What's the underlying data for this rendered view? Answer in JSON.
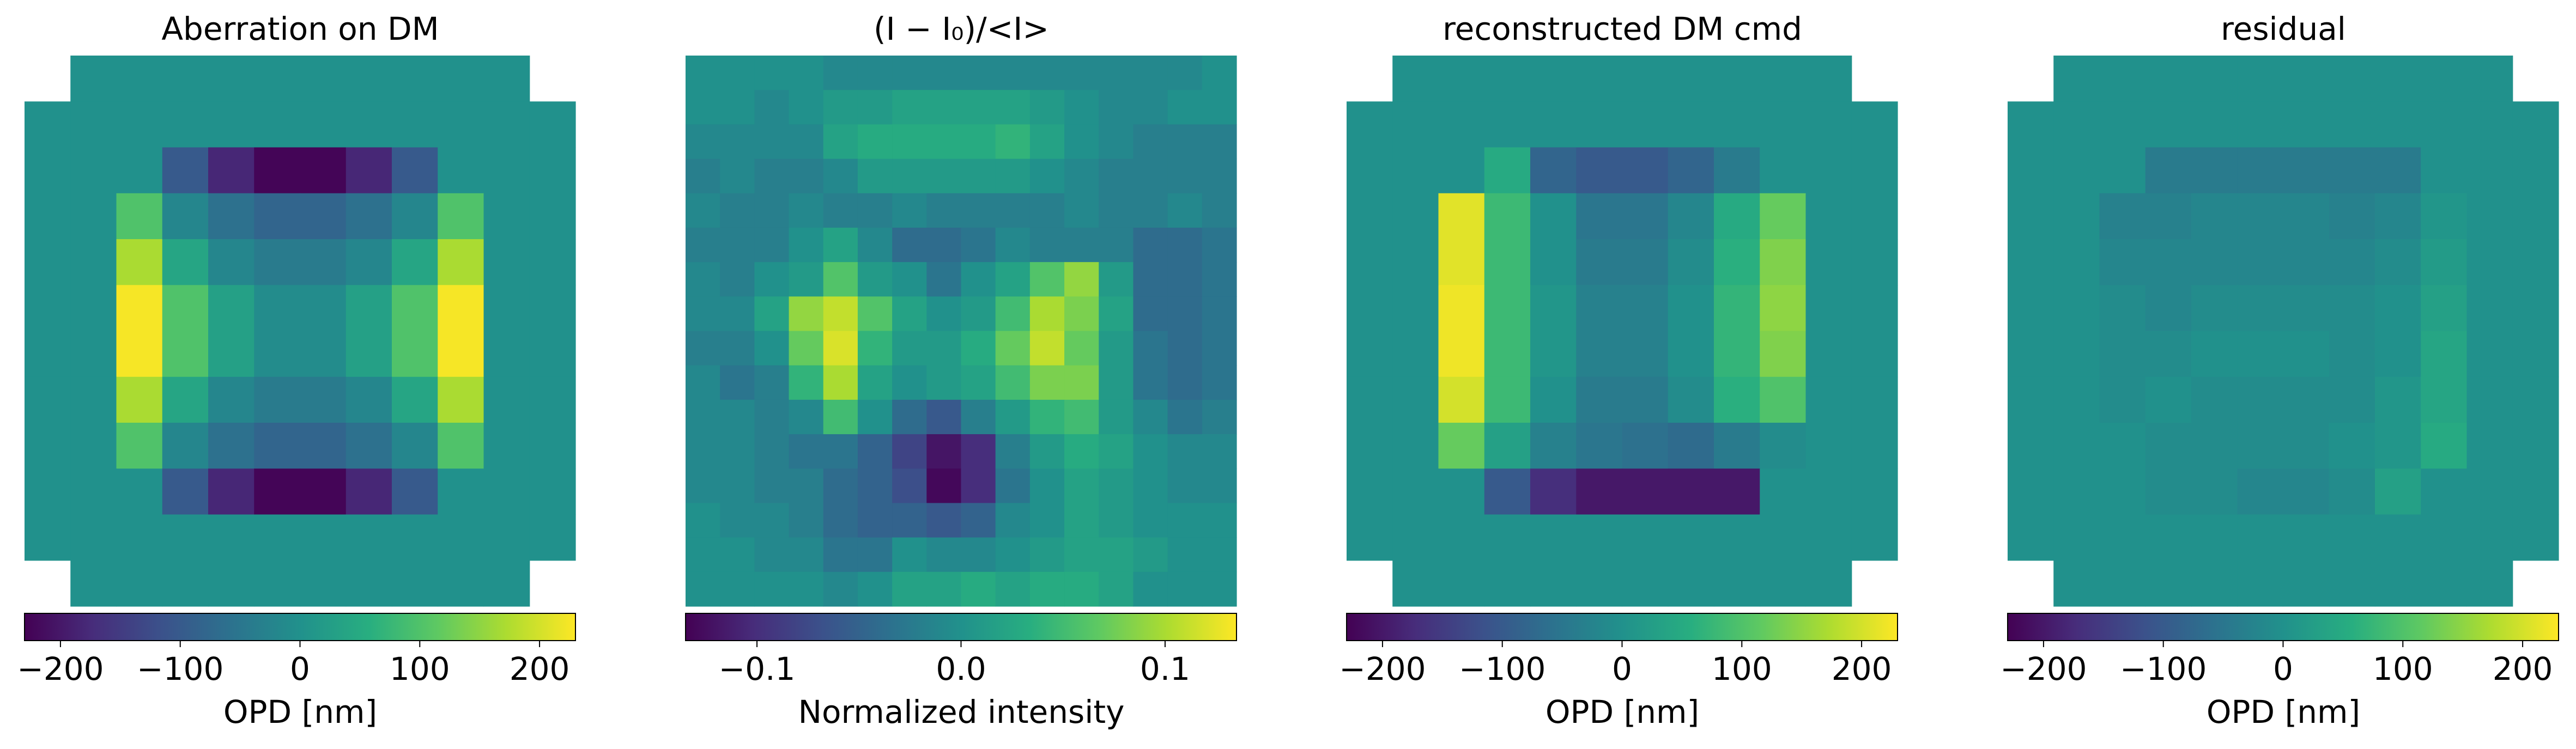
{
  "figure": {
    "panels_count": 4
  },
  "chart_data": [
    {
      "type": "heatmap",
      "title": "Aberration on DM",
      "colormap": "viridis",
      "grid": false,
      "colorbar": {
        "label": "OPD [nm]",
        "vmin": -230,
        "vmax": 230,
        "ticks": [
          -200,
          -100,
          0,
          100,
          200
        ],
        "tick_labels": [
          "−200",
          "−100",
          "0",
          "100",
          "200"
        ]
      },
      "grid_size": 12,
      "grid_data": [
        [
          null,
          0,
          0,
          0,
          0,
          0,
          0,
          0,
          0,
          0,
          0,
          null
        ],
        [
          0,
          0,
          0,
          0,
          0,
          0,
          0,
          0,
          0,
          0,
          0,
          0
        ],
        [
          0,
          0,
          0,
          -100,
          -180,
          -225,
          -225,
          -180,
          -100,
          0,
          0,
          0
        ],
        [
          0,
          0,
          100,
          -20,
          -60,
          -80,
          -80,
          -60,
          -20,
          100,
          0,
          0
        ],
        [
          0,
          0,
          170,
          40,
          -20,
          -40,
          -40,
          -20,
          40,
          170,
          0,
          0
        ],
        [
          0,
          0,
          225,
          100,
          30,
          -10,
          -10,
          30,
          100,
          225,
          0,
          0
        ],
        [
          0,
          0,
          225,
          100,
          30,
          -10,
          -10,
          30,
          100,
          225,
          0,
          0
        ],
        [
          0,
          0,
          170,
          40,
          -20,
          -40,
          -40,
          -20,
          40,
          170,
          0,
          0
        ],
        [
          0,
          0,
          100,
          -20,
          -60,
          -80,
          -80,
          -60,
          -20,
          100,
          0,
          0
        ],
        [
          0,
          0,
          0,
          -100,
          -180,
          -225,
          -225,
          -180,
          -100,
          0,
          0,
          0
        ],
        [
          0,
          0,
          0,
          0,
          0,
          0,
          0,
          0,
          0,
          0,
          0,
          0
        ],
        [
          null,
          0,
          0,
          0,
          0,
          0,
          0,
          0,
          0,
          0,
          0,
          null
        ]
      ]
    },
    {
      "type": "heatmap",
      "title": "(I − I₀)/<I>",
      "colormap": "viridis",
      "grid": false,
      "colorbar": {
        "label": "Normalized intensity",
        "vmin": -0.135,
        "vmax": 0.135,
        "ticks": [
          -0.1,
          0.0,
          0.1
        ],
        "tick_labels": [
          "−0.1",
          "0.0",
          "0.1"
        ]
      },
      "grid_size": 16,
      "grid_data": [
        [
          0.0,
          0.0,
          0.0,
          0.0,
          -0.01,
          -0.01,
          -0.01,
          -0.01,
          -0.01,
          -0.01,
          -0.01,
          -0.01,
          -0.01,
          -0.01,
          -0.01,
          0.0
        ],
        [
          0.0,
          0.0,
          -0.01,
          0.0,
          0.01,
          0.01,
          0.02,
          0.02,
          0.02,
          0.02,
          0.01,
          0.0,
          -0.01,
          -0.01,
          0.0,
          0.0
        ],
        [
          -0.01,
          -0.01,
          -0.01,
          -0.01,
          0.02,
          0.03,
          0.03,
          0.03,
          0.03,
          0.04,
          0.02,
          0.0,
          -0.01,
          -0.02,
          -0.02,
          -0.02
        ],
        [
          -0.02,
          -0.01,
          -0.02,
          -0.02,
          -0.01,
          0.01,
          0.01,
          0.01,
          0.01,
          0.01,
          0.0,
          -0.01,
          -0.02,
          -0.02,
          -0.02,
          -0.02
        ],
        [
          -0.01,
          -0.02,
          -0.02,
          -0.01,
          -0.02,
          -0.02,
          -0.01,
          -0.02,
          -0.02,
          -0.02,
          -0.02,
          -0.01,
          -0.02,
          -0.02,
          -0.01,
          -0.02
        ],
        [
          -0.02,
          -0.02,
          -0.02,
          0.0,
          0.02,
          -0.01,
          -0.04,
          -0.04,
          -0.03,
          -0.01,
          -0.02,
          -0.02,
          -0.02,
          -0.04,
          -0.04,
          -0.03
        ],
        [
          -0.01,
          -0.02,
          0.0,
          0.01,
          0.06,
          0.01,
          0.0,
          -0.03,
          0.0,
          0.02,
          0.06,
          0.09,
          0.01,
          -0.04,
          -0.04,
          -0.03
        ],
        [
          -0.01,
          -0.01,
          0.02,
          0.09,
          0.11,
          0.06,
          0.02,
          0.0,
          0.01,
          0.05,
          0.1,
          0.08,
          0.02,
          -0.04,
          -0.04,
          -0.03
        ],
        [
          -0.02,
          -0.02,
          0.0,
          0.07,
          0.12,
          0.04,
          0.01,
          0.01,
          0.03,
          0.07,
          0.11,
          0.07,
          0.01,
          -0.03,
          -0.04,
          -0.03
        ],
        [
          -0.01,
          -0.03,
          -0.02,
          0.04,
          0.1,
          0.02,
          0.0,
          0.01,
          0.02,
          0.05,
          0.08,
          0.08,
          0.01,
          -0.03,
          -0.04,
          -0.03
        ],
        [
          -0.01,
          -0.01,
          -0.02,
          -0.01,
          0.05,
          0.0,
          -0.04,
          -0.06,
          -0.02,
          0.01,
          0.04,
          0.05,
          0.01,
          -0.01,
          -0.03,
          -0.02
        ],
        [
          -0.01,
          -0.01,
          -0.02,
          -0.03,
          -0.03,
          -0.05,
          -0.08,
          -0.12,
          -0.1,
          -0.02,
          0.01,
          0.03,
          0.02,
          0.0,
          -0.01,
          -0.01
        ],
        [
          -0.01,
          -0.01,
          -0.02,
          -0.02,
          -0.04,
          -0.05,
          -0.07,
          -0.13,
          -0.1,
          -0.03,
          0.0,
          0.02,
          0.01,
          0.0,
          -0.01,
          -0.01
        ],
        [
          0.0,
          -0.01,
          -0.01,
          -0.02,
          -0.04,
          -0.05,
          -0.05,
          -0.06,
          -0.05,
          -0.01,
          0.0,
          0.02,
          0.01,
          0.0,
          0.0,
          0.0
        ],
        [
          0.0,
          0.0,
          -0.01,
          -0.01,
          -0.03,
          -0.03,
          0.0,
          -0.01,
          -0.01,
          0.0,
          0.01,
          0.02,
          0.02,
          0.01,
          0.0,
          0.0
        ],
        [
          0.0,
          0.0,
          0.0,
          0.0,
          -0.01,
          0.0,
          0.02,
          0.02,
          0.03,
          0.02,
          0.03,
          0.03,
          0.02,
          0.0,
          0.0,
          0.0
        ]
      ]
    },
    {
      "type": "heatmap",
      "title": "reconstructed DM cmd",
      "colormap": "viridis",
      "grid": false,
      "colorbar": {
        "label": "OPD [nm]",
        "vmin": -230,
        "vmax": 230,
        "ticks": [
          -200,
          -100,
          0,
          100,
          200
        ],
        "tick_labels": [
          "−200",
          "−100",
          "0",
          "100",
          "200"
        ]
      },
      "grid_size": 12,
      "grid_data": [
        [
          null,
          0,
          0,
          0,
          0,
          0,
          0,
          0,
          0,
          0,
          0,
          null
        ],
        [
          0,
          0,
          0,
          0,
          0,
          0,
          0,
          0,
          0,
          0,
          0,
          0
        ],
        [
          0,
          0,
          0,
          50,
          -80,
          -100,
          -100,
          -80,
          -40,
          0,
          0,
          0
        ],
        [
          0,
          0,
          210,
          80,
          0,
          -50,
          -50,
          -20,
          50,
          120,
          0,
          0
        ],
        [
          0,
          0,
          210,
          80,
          0,
          -40,
          -40,
          -10,
          60,
          140,
          0,
          0
        ],
        [
          0,
          0,
          220,
          80,
          10,
          -30,
          -30,
          0,
          70,
          150,
          0,
          0
        ],
        [
          0,
          0,
          220,
          80,
          10,
          -30,
          -30,
          0,
          70,
          140,
          0,
          0
        ],
        [
          0,
          0,
          200,
          80,
          0,
          -40,
          -40,
          -10,
          60,
          100,
          0,
          0
        ],
        [
          0,
          0,
          120,
          30,
          -30,
          -50,
          -60,
          -70,
          -40,
          -10,
          0,
          0
        ],
        [
          0,
          0,
          0,
          -100,
          -170,
          -200,
          -200,
          -200,
          -200,
          0,
          0,
          0
        ],
        [
          0,
          0,
          0,
          0,
          0,
          0,
          0,
          0,
          0,
          0,
          0,
          0
        ],
        [
          null,
          0,
          0,
          0,
          0,
          0,
          0,
          0,
          0,
          0,
          0,
          null
        ]
      ]
    },
    {
      "type": "heatmap",
      "title": "residual",
      "colormap": "viridis",
      "grid": false,
      "colorbar": {
        "label": "OPD [nm]",
        "vmin": -230,
        "vmax": 230,
        "ticks": [
          -200,
          -100,
          0,
          100,
          200
        ],
        "tick_labels": [
          "−200",
          "−100",
          "0",
          "100",
          "200"
        ]
      },
      "grid_size": 12,
      "grid_data": [
        [
          null,
          0,
          0,
          0,
          0,
          0,
          0,
          0,
          0,
          0,
          0,
          null
        ],
        [
          0,
          0,
          0,
          0,
          0,
          0,
          0,
          0,
          0,
          0,
          0,
          0
        ],
        [
          0,
          0,
          0,
          -40,
          -40,
          -40,
          -40,
          -40,
          -40,
          0,
          0,
          0
        ],
        [
          0,
          0,
          -30,
          -30,
          -20,
          -20,
          -20,
          -30,
          -20,
          10,
          0,
          0
        ],
        [
          0,
          0,
          -20,
          -20,
          -20,
          -20,
          -20,
          -20,
          -10,
          20,
          0,
          0
        ],
        [
          0,
          0,
          -10,
          -20,
          -10,
          -10,
          -10,
          -10,
          0,
          30,
          0,
          0
        ],
        [
          0,
          0,
          -10,
          -10,
          0,
          0,
          0,
          -10,
          0,
          40,
          0,
          0
        ],
        [
          0,
          0,
          -10,
          0,
          -10,
          -10,
          -10,
          -10,
          10,
          40,
          0,
          0
        ],
        [
          0,
          0,
          0,
          -10,
          -10,
          -10,
          -10,
          0,
          10,
          50,
          0,
          0
        ],
        [
          0,
          0,
          0,
          -10,
          -10,
          -20,
          -20,
          -10,
          30,
          0,
          0,
          0
        ],
        [
          0,
          0,
          0,
          0,
          0,
          0,
          0,
          0,
          0,
          0,
          0,
          0
        ],
        [
          null,
          0,
          0,
          0,
          0,
          0,
          0,
          0,
          0,
          0,
          0,
          null
        ]
      ]
    }
  ]
}
